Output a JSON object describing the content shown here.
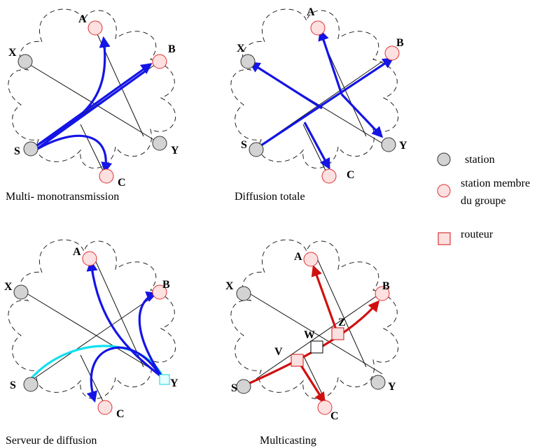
{
  "colors": {
    "station_fill": "#d3d3d3",
    "member_fill": "#fde0e0",
    "member_stroke": "#e03030",
    "unicast_arrow": "#1414e6",
    "server_arrow": "#10e0f0",
    "multicast_arrow": "#d01010",
    "router_fill": "#fde0e0",
    "router_stroke": "#d01010"
  },
  "nodes": {
    "A": "A",
    "B": "B",
    "C": "C",
    "S": "S",
    "X": "X",
    "Y": "Y"
  },
  "routers": {
    "W": "W",
    "Z": "Z",
    "V": "V"
  },
  "captions": {
    "panel1": "Multi- monotransmission",
    "panel2": "Diffusion totale",
    "panel3": "Serveur de diffusion",
    "panel4": "Multicasting"
  },
  "legend": {
    "station": "station",
    "member_line1": "station membre",
    "member_line2": "du groupe",
    "router": "routeur"
  }
}
